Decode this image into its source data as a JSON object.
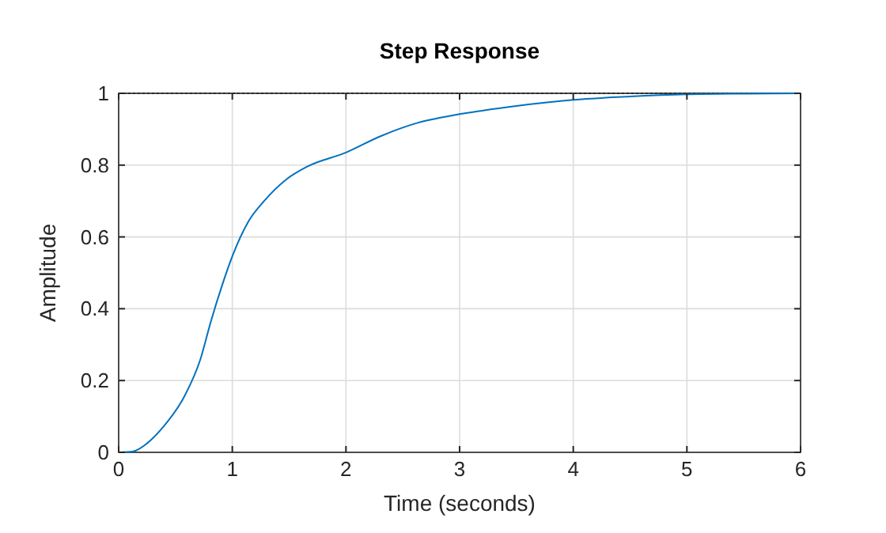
{
  "chart_data": {
    "type": "line",
    "title": "Step Response",
    "xlabel": "Time (seconds)",
    "ylabel": "Amplitude",
    "x": [
      0,
      0.13,
      0.25,
      0.39,
      0.58,
      0.72,
      0.81,
      0.91,
      1.0,
      1.14,
      1.28,
      1.47,
      1.66,
      2.0,
      2.3,
      2.6,
      3.0,
      3.5,
      4.0,
      4.5,
      5.0,
      5.5,
      6.0
    ],
    "series": [
      {
        "color": "#0072bd",
        "values": [
          0,
          0.003,
          0.025,
          0.07,
          0.157,
          0.26,
          0.363,
          0.465,
          0.546,
          0.642,
          0.7,
          0.759,
          0.796,
          0.835,
          0.88,
          0.915,
          0.942,
          0.965,
          0.982,
          0.991,
          0.997,
          0.999,
          1.0
        ]
      }
    ],
    "xlim": [
      0,
      6
    ],
    "xticks": [
      0,
      1,
      2,
      3,
      4,
      5,
      6
    ],
    "ylim": [
      0,
      1
    ],
    "yticks": [
      0,
      0.2,
      0.4,
      0.6,
      0.8,
      1
    ],
    "grid": true,
    "marker": "none",
    "line_style": "solid",
    "ref_lines": [
      {
        "axis": "y",
        "value": 1,
        "color": "#000000",
        "line_style": "dotted"
      }
    ]
  }
}
